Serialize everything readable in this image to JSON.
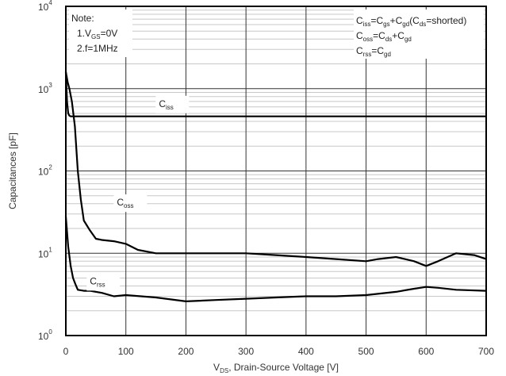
{
  "chart_data": {
    "type": "line",
    "title": "",
    "xlabel": {
      "main": "V",
      "sub": "DS",
      "rest": ", Drain-Source Voltage [V]"
    },
    "ylabel": "Capacitances [pF]",
    "xlim": [
      0,
      700
    ],
    "ylim": [
      1,
      10000
    ],
    "yscale": "log",
    "grid": true,
    "x_ticks": [
      "0",
      "100",
      "200",
      "300",
      "400",
      "500",
      "600",
      "700"
    ],
    "y_ticks": [
      {
        "base": "10",
        "exp": "0"
      },
      {
        "base": "10",
        "exp": "1"
      },
      {
        "base": "10",
        "exp": "2"
      },
      {
        "base": "10",
        "exp": "3"
      },
      {
        "base": "10",
        "exp": "4"
      }
    ],
    "note": {
      "title": "Note:",
      "line1": {
        "prefix": "1.V",
        "sub": "GS",
        "suffix": "=0V"
      },
      "line2": "2.f=1MHz"
    },
    "formulas": [
      [
        {
          "t": "C"
        },
        {
          "t": "iss",
          "s": 1
        },
        {
          "t": "=C"
        },
        {
          "t": "gs",
          "s": 1
        },
        {
          "t": "+C"
        },
        {
          "t": "gd",
          "s": 1
        },
        {
          "t": "(C"
        },
        {
          "t": "ds",
          "s": 1
        },
        {
          "t": "=shorted)"
        }
      ],
      [
        {
          "t": "C"
        },
        {
          "t": "oss",
          "s": 1
        },
        {
          "t": "=C"
        },
        {
          "t": "ds",
          "s": 1
        },
        {
          "t": "+C"
        },
        {
          "t": "gd",
          "s": 1
        }
      ],
      [
        {
          "t": "C"
        },
        {
          "t": "rss",
          "s": 1
        },
        {
          "t": "=C"
        },
        {
          "t": "gd",
          "s": 1
        }
      ]
    ],
    "series": [
      {
        "name": {
          "main": "C",
          "sub": "iss"
        },
        "label_at": [
          155,
          600
        ],
        "x": [
          0,
          2,
          4,
          6,
          8,
          10,
          20,
          40,
          60,
          100,
          200,
          300,
          400,
          500,
          600,
          700
        ],
        "y": [
          1600,
          700,
          500,
          470,
          460,
          460,
          460,
          460,
          460,
          460,
          460,
          460,
          460,
          460,
          460,
          460
        ]
      },
      {
        "name": {
          "main": "C",
          "sub": "oss"
        },
        "label_at": [
          85,
          38
        ],
        "x": [
          0,
          3,
          6,
          10,
          15,
          20,
          25,
          30,
          40,
          50,
          60,
          80,
          100,
          120,
          150,
          200,
          250,
          300,
          350,
          400,
          450,
          500,
          520,
          550,
          580,
          600,
          620,
          650,
          680,
          700
        ],
        "y": [
          1600,
          1200,
          1000,
          700,
          350,
          100,
          45,
          25,
          19,
          15,
          14.5,
          14,
          13,
          11,
          10,
          10,
          10,
          10,
          9.5,
          9,
          8.5,
          8,
          8.5,
          9,
          8,
          7,
          8,
          10,
          9.5,
          8.5
        ]
      },
      {
        "name": {
          "main": "C",
          "sub": "rss"
        },
        "label_at": [
          40,
          4.2
        ],
        "x": [
          0,
          4,
          8,
          12,
          16,
          20,
          30,
          40,
          60,
          80,
          100,
          150,
          200,
          250,
          300,
          350,
          400,
          450,
          500,
          550,
          580,
          600,
          620,
          650,
          700
        ],
        "y": [
          28,
          12,
          7,
          5,
          4.2,
          3.6,
          3.5,
          3.5,
          3.3,
          3,
          3.1,
          2.9,
          2.6,
          2.7,
          2.8,
          2.9,
          3,
          3,
          3.1,
          3.4,
          3.7,
          3.9,
          3.8,
          3.6,
          3.5
        ]
      }
    ]
  }
}
